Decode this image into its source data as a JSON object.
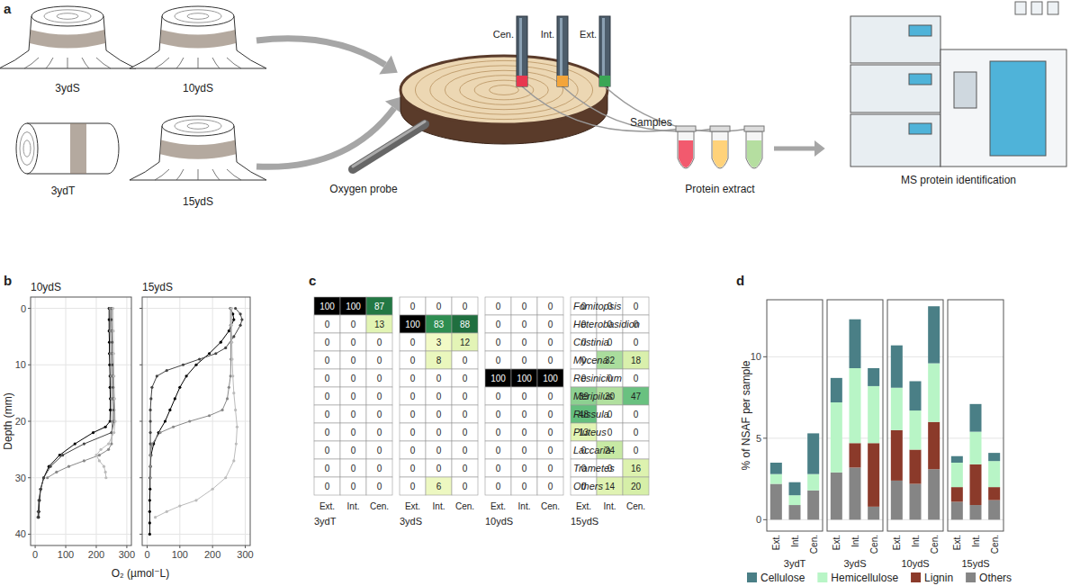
{
  "diagram": {
    "panel_label": "a",
    "stumps": [
      "3ydS",
      "10ydS",
      "3ydT",
      "15ydS"
    ],
    "probes": [
      "Cen.",
      "Int.",
      "Ext."
    ],
    "oxygen_probe": "Oxygen probe",
    "samples": "Samples",
    "protein_extract": "Protein extract",
    "ms": "MS protein identification"
  },
  "chart_data": [
    {
      "type": "line",
      "panel_label": "b",
      "title": "10ydS",
      "y_label": "Depth (mm)",
      "x_label": "O₂ (µmol⁻L)",
      "xlim": [
        -15,
        315
      ],
      "xticks": [
        0,
        100,
        200,
        300
      ],
      "ylim": [
        42,
        -2
      ],
      "yticks": [
        0,
        10,
        20,
        30,
        40
      ],
      "grid": true,
      "marker": "circle",
      "series": [
        {
          "color": "#000000",
          "x": [
            242,
            242,
            242,
            243,
            243,
            244,
            245,
            245,
            246,
            246,
            245,
            230,
            190,
            130,
            80,
            45,
            28,
            18,
            14,
            12,
            11
          ],
          "values": [
            0,
            2,
            4,
            6,
            8,
            10,
            12,
            14,
            16,
            18,
            20,
            21,
            22,
            24,
            26,
            28,
            30,
            32,
            34,
            36,
            37
          ]
        },
        {
          "color": "#444444",
          "x": [
            250,
            250,
            251,
            252,
            252,
            253,
            254,
            255,
            256,
            258,
            258,
            250,
            160,
            90,
            50,
            28,
            18,
            12,
            10,
            9
          ],
          "values": [
            0,
            2,
            4,
            6,
            8,
            10,
            12,
            14,
            16,
            18,
            20,
            22,
            24,
            26,
            28,
            30,
            32,
            34,
            36,
            37
          ]
        },
        {
          "color": "#888888",
          "x": [
            245,
            246,
            247,
            248,
            250,
            252,
            250,
            240,
            210,
            160,
            110,
            70,
            40
          ],
          "values": [
            0,
            4,
            8,
            12,
            16,
            20,
            24,
            25,
            26,
            27,
            28,
            29,
            30
          ]
        },
        {
          "color": "#bbbbbb",
          "x": [
            255,
            256,
            257,
            258,
            260,
            262,
            258,
            240,
            215,
            200,
            210,
            225,
            230,
            232
          ],
          "values": [
            0,
            4,
            8,
            12,
            16,
            20,
            22,
            24,
            25,
            26,
            27,
            28,
            29,
            30
          ]
        }
      ]
    },
    {
      "type": "line",
      "title": "15ydS",
      "xlim": [
        -15,
        315
      ],
      "xticks": [
        0,
        100,
        200,
        300
      ],
      "ylim": [
        42,
        -2
      ],
      "yticks": [
        0,
        10,
        20,
        30,
        40
      ],
      "grid": true,
      "marker": "circle",
      "tick_labels": "x",
      "series": [
        {
          "color": "#000000",
          "x": [
            255,
            262,
            265,
            250,
            225,
            190,
            150,
            120,
            100,
            85,
            70,
            55,
            35,
            20,
            12,
            10,
            9,
            9,
            8,
            8,
            8,
            8
          ],
          "values": [
            0,
            1,
            2,
            4,
            6,
            8,
            10,
            12,
            14,
            16,
            18,
            20,
            22,
            24,
            26,
            28,
            30,
            32,
            34,
            36,
            38,
            40
          ]
        },
        {
          "color": "#444444",
          "x": [
            270,
            285,
            290,
            285,
            265,
            240,
            210,
            160,
            110,
            60,
            30,
            15,
            12,
            10,
            10,
            10,
            10,
            10
          ],
          "values": [
            0,
            1,
            2,
            3,
            5,
            7,
            8,
            9,
            10,
            11,
            12,
            14,
            16,
            18,
            20,
            22,
            24,
            26
          ]
        },
        {
          "color": "#888888",
          "x": [
            255,
            255,
            256,
            256,
            255,
            250,
            245,
            230,
            190,
            130,
            80,
            40,
            15,
            10,
            10,
            10
          ],
          "values": [
            0,
            3,
            6,
            9,
            12,
            14,
            16,
            18,
            19,
            20,
            21,
            22,
            24,
            26,
            28,
            30
          ]
        },
        {
          "color": "#bbbbbb",
          "x": [
            258,
            258,
            259,
            260,
            262,
            265,
            270,
            275,
            272,
            265,
            240,
            200,
            150,
            100,
            60,
            25
          ],
          "values": [
            0,
            3,
            6,
            9,
            12,
            15,
            18,
            21,
            24,
            27,
            30,
            32,
            34,
            35,
            36,
            37
          ]
        }
      ]
    },
    {
      "type": "heatmap",
      "panel_label": "c",
      "data_labels": true,
      "rows": [
        "Fomitopsis",
        "Heterobasidion",
        "Cristinia",
        "Mycena",
        "Resinicium",
        "Meripilus",
        "Russula",
        "Pluteus",
        "Laccaria",
        "Trametes",
        "Others"
      ],
      "columns": [
        "Ext.",
        "Int.",
        "Cen."
      ],
      "groups": [
        {
          "name": "3ydT",
          "cells": [
            [
              100,
              100,
              87
            ],
            [
              0,
              0,
              13
            ],
            [
              0,
              0,
              0
            ],
            [
              0,
              0,
              0
            ],
            [
              0,
              0,
              0
            ],
            [
              0,
              0,
              0
            ],
            [
              0,
              0,
              0
            ],
            [
              0,
              0,
              0
            ],
            [
              0,
              0,
              0
            ],
            [
              0,
              0,
              0
            ],
            [
              0,
              0,
              0
            ]
          ]
        },
        {
          "name": "3ydS",
          "cells": [
            [
              0,
              0,
              0
            ],
            [
              100,
              83,
              88
            ],
            [
              0,
              3,
              12
            ],
            [
              0,
              8,
              0
            ],
            [
              0,
              0,
              0
            ],
            [
              0,
              0,
              0
            ],
            [
              0,
              0,
              0
            ],
            [
              0,
              0,
              0
            ],
            [
              0,
              0,
              0
            ],
            [
              0,
              0,
              0
            ],
            [
              0,
              6,
              0
            ]
          ]
        },
        {
          "name": "10ydS",
          "cells": [
            [
              0,
              0,
              0
            ],
            [
              0,
              0,
              0
            ],
            [
              0,
              0,
              0
            ],
            [
              0,
              0,
              0
            ],
            [
              100,
              100,
              100
            ],
            [
              0,
              0,
              0
            ],
            [
              0,
              0,
              0
            ],
            [
              0,
              0,
              0
            ],
            [
              0,
              0,
              0
            ],
            [
              0,
              0,
              0
            ],
            [
              0,
              0,
              0
            ]
          ]
        },
        {
          "name": "15ydS",
          "cells": [
            [
              0,
              0,
              0
            ],
            [
              0,
              0,
              0
            ],
            [
              0,
              0,
              0
            ],
            [
              0,
              32,
              18
            ],
            [
              0,
              0,
              0
            ],
            [
              39,
              30,
              47
            ],
            [
              48,
              0,
              0
            ],
            [
              13,
              0,
              0
            ],
            [
              0,
              24,
              0
            ],
            [
              0,
              0,
              16
            ],
            [
              0,
              14,
              20
            ]
          ]
        }
      ]
    },
    {
      "type": "bar",
      "stacked": true,
      "panel_label": "d",
      "y_label": "% of NSAF per sample",
      "groups": [
        "3ydT",
        "3ydS",
        "10ydS",
        "15ydS"
      ],
      "categories": [
        "Ext.",
        "Int.",
        "Cen."
      ],
      "ylim": [
        -0.7,
        13.5
      ],
      "yticks": [
        0,
        5,
        10
      ],
      "grid": true,
      "legend": "bottom",
      "series": [
        {
          "name": "Cellulose",
          "color": "#4a7f86",
          "values": [
            [
              0.7,
              0.8,
              2.5
            ],
            [
              1.5,
              3.0,
              1.1
            ],
            [
              2.6,
              1.8,
              3.5
            ],
            [
              0.4,
              1.7,
              0.5
            ]
          ]
        },
        {
          "name": "Hemicellulose",
          "color": "#b8f5c6",
          "values": [
            [
              0.6,
              0.6,
              1.0
            ],
            [
              4.3,
              4.6,
              3.5
            ],
            [
              2.6,
              2.4,
              3.6
            ],
            [
              1.5,
              2.0,
              1.6
            ]
          ]
        },
        {
          "name": "Lignin",
          "color": "#8b3a2a",
          "values": [
            [
              0,
              0,
              0
            ],
            [
              0,
              1.5,
              3.9
            ],
            [
              3.1,
              2.1,
              2.9
            ],
            [
              0.9,
              2.5,
              0.8
            ]
          ]
        },
        {
          "name": "Others",
          "color": "#858585",
          "values": [
            [
              2.2,
              0.9,
              1.8
            ],
            [
              2.9,
              3.2,
              0.8
            ],
            [
              2.4,
              2.2,
              3.1
            ],
            [
              1.1,
              0.9,
              1.2
            ]
          ]
        }
      ]
    }
  ]
}
